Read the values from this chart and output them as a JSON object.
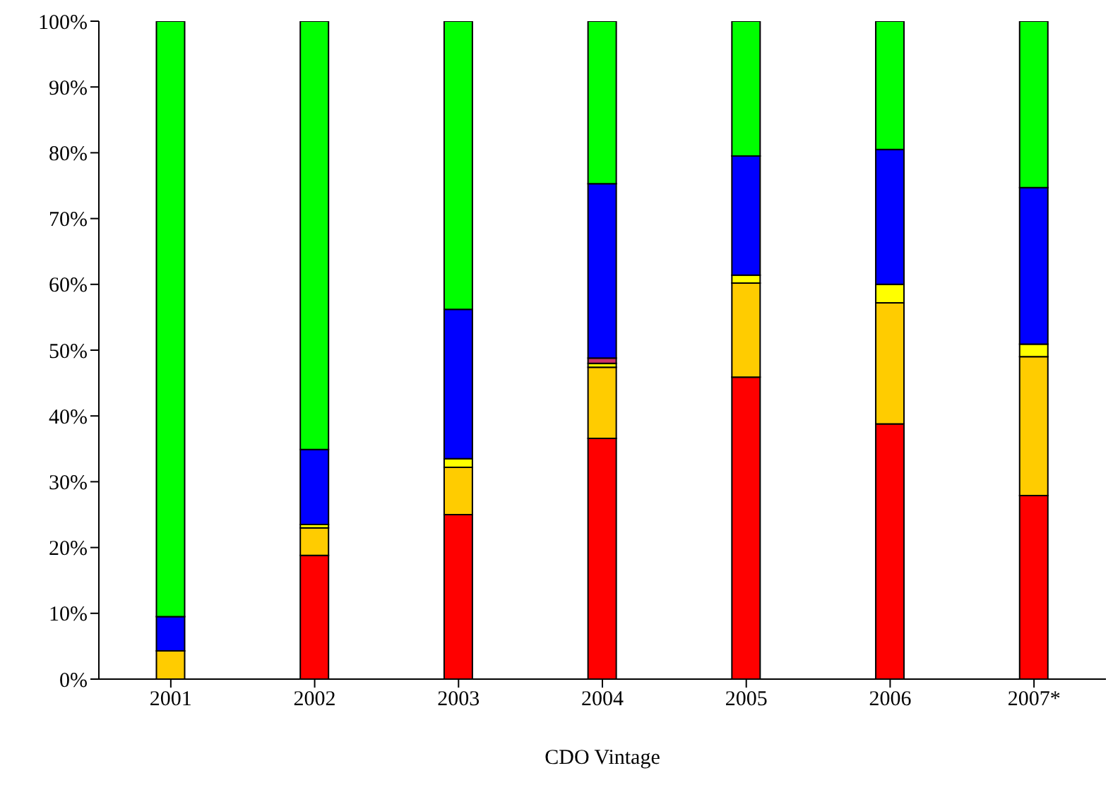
{
  "chart_data": {
    "type": "bar",
    "stacked": true,
    "xlabel": "CDO Vintage",
    "categories": [
      "2001",
      "2002",
      "2003",
      "2004",
      "2005",
      "2006",
      "2007*"
    ],
    "series": [
      {
        "color": "#ff0000",
        "values": [
          null,
          18.8,
          25.0,
          36.6,
          45.9,
          38.8,
          27.9
        ]
      },
      {
        "color": "#ffcc00",
        "values": [
          4.3,
          4.2,
          7.2,
          10.8,
          14.3,
          18.4,
          21.1
        ]
      },
      {
        "color": "#ffff00",
        "values": [
          null,
          0.5,
          1.3,
          0.6,
          1.2,
          2.8,
          1.9
        ]
      },
      {
        "color": "#cc3366",
        "values": [
          null,
          null,
          null,
          0.8,
          null,
          null,
          null
        ]
      },
      {
        "color": "#0000ff",
        "values": [
          5.2,
          11.4,
          22.7,
          26.5,
          18.1,
          20.5,
          23.8
        ]
      },
      {
        "color": "#00ff00",
        "values": [
          90.5,
          65.1,
          43.8,
          24.7,
          20.5,
          19.5,
          25.3
        ]
      }
    ],
    "ylim": [
      0,
      100
    ],
    "yticks": [
      {
        "value": 0,
        "label": "0%"
      },
      {
        "value": 10,
        "label": "10%"
      },
      {
        "value": 20,
        "label": "20%"
      },
      {
        "value": 30,
        "label": "30%"
      },
      {
        "value": 40,
        "label": "40%"
      },
      {
        "value": 50,
        "label": "50%"
      },
      {
        "value": 60,
        "label": "60%"
      },
      {
        "value": 70,
        "label": "70%"
      },
      {
        "value": 80,
        "label": "80%"
      },
      {
        "value": 90,
        "label": "90%"
      },
      {
        "value": 100,
        "label": "100%"
      }
    ],
    "grid": false,
    "legend": false
  }
}
